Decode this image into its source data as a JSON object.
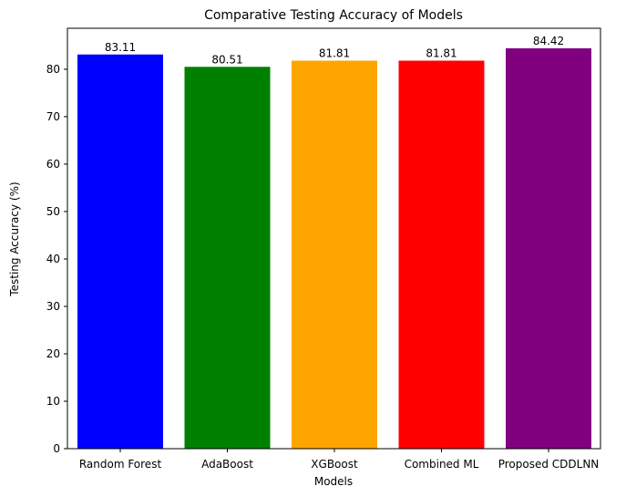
{
  "chart_data": {
    "type": "bar",
    "title": "Comparative Testing Accuracy of Models",
    "xlabel": "Models",
    "ylabel": "Testing Accuracy (%)",
    "categories": [
      "Random Forest",
      "AdaBoost",
      "XGBoost",
      "Combined ML",
      "Proposed CDDLNN"
    ],
    "values": [
      83.11,
      80.51,
      81.81,
      81.81,
      84.42
    ],
    "value_labels": [
      "83.11",
      "80.51",
      "81.81",
      "81.81",
      "84.42"
    ],
    "colors": [
      "#0000ff",
      "#008000",
      "#ffa500",
      "#ff0000",
      "#800080"
    ],
    "ylim": [
      0,
      88.64
    ],
    "yticks": [
      0,
      10,
      20,
      30,
      40,
      50,
      60,
      70,
      80
    ],
    "grid": false,
    "legend": "none"
  }
}
